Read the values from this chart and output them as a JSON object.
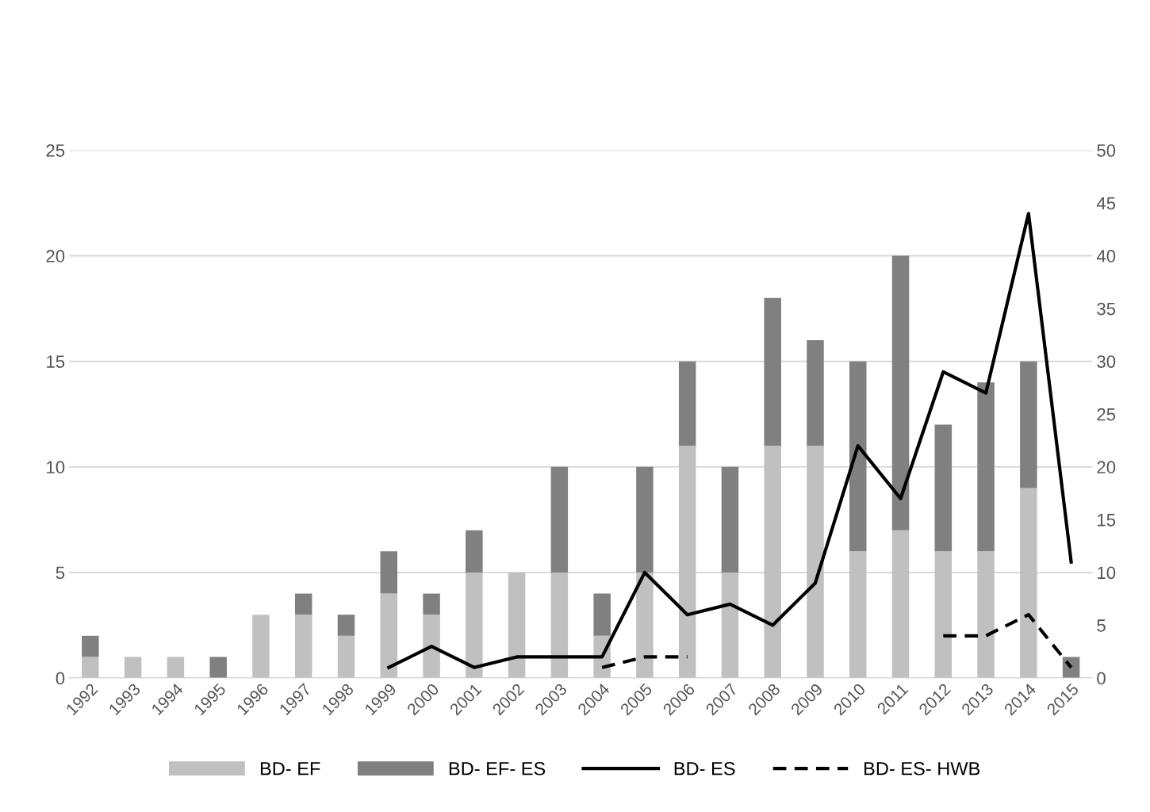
{
  "chart_data": {
    "type": "bar",
    "stacked": true,
    "categories": [
      "1992",
      "1993",
      "1994",
      "1995",
      "1996",
      "1997",
      "1998",
      "1999",
      "2000",
      "2001",
      "2002",
      "2003",
      "2004",
      "2005",
      "2006",
      "2007",
      "2008",
      "2009",
      "2010",
      "2011",
      "2012",
      "2013",
      "2014",
      "2015"
    ],
    "series": [
      {
        "name": "BD- EF",
        "color": "#c0c0c0",
        "values": [
          1,
          1,
          1,
          0,
          3,
          3,
          2,
          4,
          3,
          5,
          5,
          5,
          2,
          5,
          11,
          5,
          11,
          11,
          6,
          7,
          6,
          6,
          9,
          0
        ]
      },
      {
        "name": "BD- EF- ES",
        "color": "#808080",
        "values": [
          1,
          0,
          0,
          1,
          0,
          1,
          1,
          2,
          1,
          2,
          0,
          5,
          2,
          5,
          4,
          5,
          7,
          5,
          9,
          13,
          6,
          8,
          6,
          1
        ]
      },
      {
        "name": "BD- ES",
        "type": "line",
        "axis": "y2",
        "color": "#000000",
        "line_style": "solid",
        "values": [
          null,
          null,
          null,
          null,
          null,
          null,
          null,
          1,
          3,
          1,
          2,
          2,
          2,
          10,
          6,
          7,
          5,
          9,
          22,
          17,
          29,
          27,
          44,
          11
        ]
      },
      {
        "name": "BD- ES- HWB",
        "type": "line",
        "axis": "y2",
        "color": "#000000",
        "line_style": "dashed",
        "values": [
          null,
          null,
          null,
          null,
          null,
          null,
          null,
          null,
          null,
          null,
          null,
          null,
          1,
          2,
          2,
          null,
          null,
          null,
          null,
          null,
          4,
          4,
          6,
          1
        ]
      }
    ],
    "ylim": [
      0,
      25
    ],
    "yticks": [
      0,
      5,
      10,
      15,
      20,
      25
    ],
    "y2lim": [
      0,
      50
    ],
    "y2ticks": [
      0,
      5,
      10,
      15,
      20,
      25,
      30,
      35,
      40,
      45,
      50
    ],
    "grid": "y",
    "legend": "bottom",
    "marker": "none"
  }
}
